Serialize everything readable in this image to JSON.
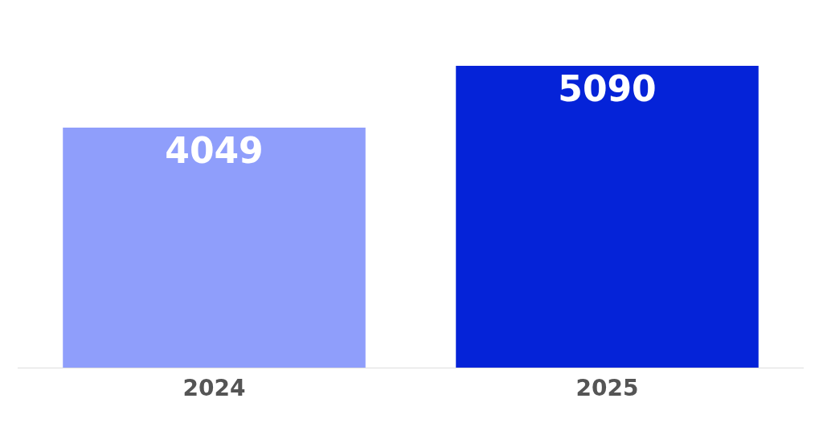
{
  "chart_data": {
    "type": "bar",
    "categories": [
      "2024",
      "2025"
    ],
    "values": [
      4049,
      5090
    ],
    "colors": [
      "#8f9efb",
      "#0523d8"
    ],
    "data_labels": true
  }
}
